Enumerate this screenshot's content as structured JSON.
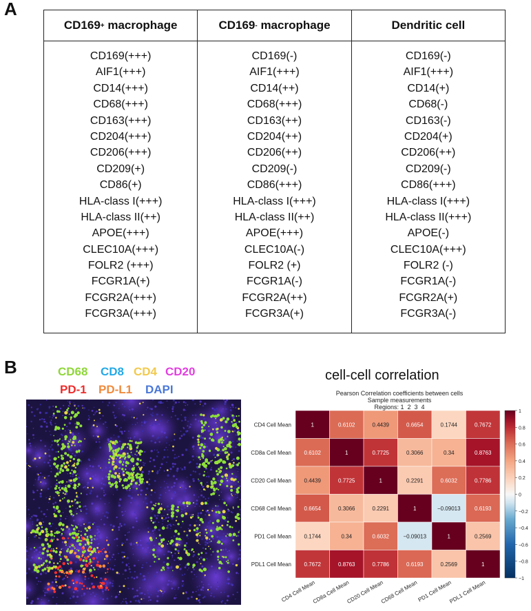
{
  "panel_a": {
    "letter": "A",
    "headers": [
      {
        "main": "CD169",
        "sup": "+",
        "rest": " macrophage"
      },
      {
        "main": "CD169",
        "sup": "-",
        "rest": " macrophage"
      },
      {
        "main": "Dendritic cell",
        "sup": "",
        "rest": ""
      }
    ],
    "columns": [
      [
        "CD169(+++)",
        "AIF1(+++)",
        "CD14(+++)",
        "CD68(+++)",
        "CD163(+++)",
        "CD204(+++)",
        "CD206(+++)",
        "CD209(+)",
        "CD86(+)",
        "HLA-class I(+++)",
        "HLA-class II(++)",
        "APOE(+++)",
        "CLEC10A(+++)",
        "FOLR2 (+++)",
        "FCGR1A(+)",
        "FCGR2A(+++)",
        "FCGR3A(+++)"
      ],
      [
        "CD169(-)",
        "AIF1(+++)",
        "CD14(++)",
        "CD68(+++)",
        "CD163(++)",
        "CD204(++)",
        "CD206(++)",
        "CD209(-)",
        "CD86(+++)",
        "HLA-class I(+++)",
        "HLA-class II(++)",
        "APOE(+++)",
        "CLEC10A(-)",
        "FOLR2 (+)",
        "FCGR1A(-)",
        "FCGR2A(++)",
        "FCGR3A(+)"
      ],
      [
        "CD169(-)",
        "AIF1(+++)",
        "CD14(+)",
        "CD68(-)",
        "CD163(-)",
        "CD204(+)",
        "CD206(++)",
        "CD209(-)",
        "CD86(+++)",
        "HLA-class I(+++)",
        "HLA-class II(+++)",
        "APOE(-)",
        "CLEC10A(+++)",
        "FOLR2 (-)",
        "FCGR1A(-)",
        "FCGR2A(+)",
        "FCGR3A(-)"
      ]
    ]
  },
  "panel_b": {
    "letter": "B",
    "legend": [
      {
        "label": "CD68",
        "color": "#8fd63a"
      },
      {
        "label": "CD8",
        "color": "#23a9e6"
      },
      {
        "label": "CD4",
        "color": "#f2c94c"
      },
      {
        "label": "CD20",
        "color": "#e23fe0"
      },
      {
        "label": "PD-1",
        "color": "#ee2b2b"
      },
      {
        "label": "PD-L1",
        "color": "#f08a3c"
      },
      {
        "label": "DAPI",
        "color": "#4a78d8"
      }
    ],
    "corr_title": "cell-cell correlation",
    "corr_subtitle": [
      "Pearson Correlation coefficients between cells",
      "Sample measurements",
      "Regions: 1  2  3  4"
    ]
  },
  "chart_data": {
    "type": "heatmap",
    "rows": [
      "CD4 Cell Mean",
      "CD8a Cell Mean",
      "CD20 Cell Mean",
      "CD68 Cell Mean",
      "PD1 Cell Mean",
      "PDL1 Cell Mean"
    ],
    "cols": [
      "CD4 Cell Mean",
      "CD8a Cell Mean",
      "CD20 Cell Mean",
      "CD68 Cell Mean",
      "PD1 Cell Mean",
      "PDL1 Cell Mean"
    ],
    "values": [
      [
        1,
        0.6102,
        0.4439,
        0.6654,
        0.1744,
        0.7672
      ],
      [
        0.6102,
        1,
        0.7725,
        0.3066,
        0.34,
        0.8763
      ],
      [
        0.4439,
        0.7725,
        1,
        0.2291,
        0.6032,
        0.7786
      ],
      [
        0.6654,
        0.3066,
        0.2291,
        1,
        -0.09013,
        0.6193
      ],
      [
        0.1744,
        0.34,
        0.6032,
        -0.09013,
        1,
        0.2569
      ],
      [
        0.7672,
        0.8763,
        0.7786,
        0.6193,
        0.2569,
        1
      ]
    ],
    "value_labels": [
      [
        "1",
        "0.6102",
        "0.4439",
        "0.6654",
        "0.1744",
        "0.7672"
      ],
      [
        "0.6102",
        "1",
        "0.7725",
        "0.3066",
        "0.34",
        "0.8763"
      ],
      [
        "0.4439",
        "0.7725",
        "1",
        "0.2291",
        "0.6032",
        "0.7786"
      ],
      [
        "0.6654",
        "0.3066",
        "0.2291",
        "1",
        "−0.09013",
        "0.6193"
      ],
      [
        "0.1744",
        "0.34",
        "0.6032",
        "−0.09013",
        "1",
        "0.2569"
      ],
      [
        "0.7672",
        "0.8763",
        "0.7786",
        "0.6193",
        "0.2569",
        "1"
      ]
    ],
    "colorbar_ticks": [
      {
        "v": 1,
        "label": "1"
      },
      {
        "v": 0.8,
        "label": "0.8"
      },
      {
        "v": 0.6,
        "label": "0.6"
      },
      {
        "v": 0.4,
        "label": "0.4"
      },
      {
        "v": 0.2,
        "label": "0.2"
      },
      {
        "v": 0,
        "label": "0"
      },
      {
        "v": -0.2,
        "label": "−0.2"
      },
      {
        "v": -0.4,
        "label": "−0.4"
      },
      {
        "v": -0.6,
        "label": "−0.6"
      },
      {
        "v": -0.8,
        "label": "−0.8"
      },
      {
        "v": -1,
        "label": "−1"
      }
    ],
    "vmin": -1,
    "vmax": 1
  }
}
